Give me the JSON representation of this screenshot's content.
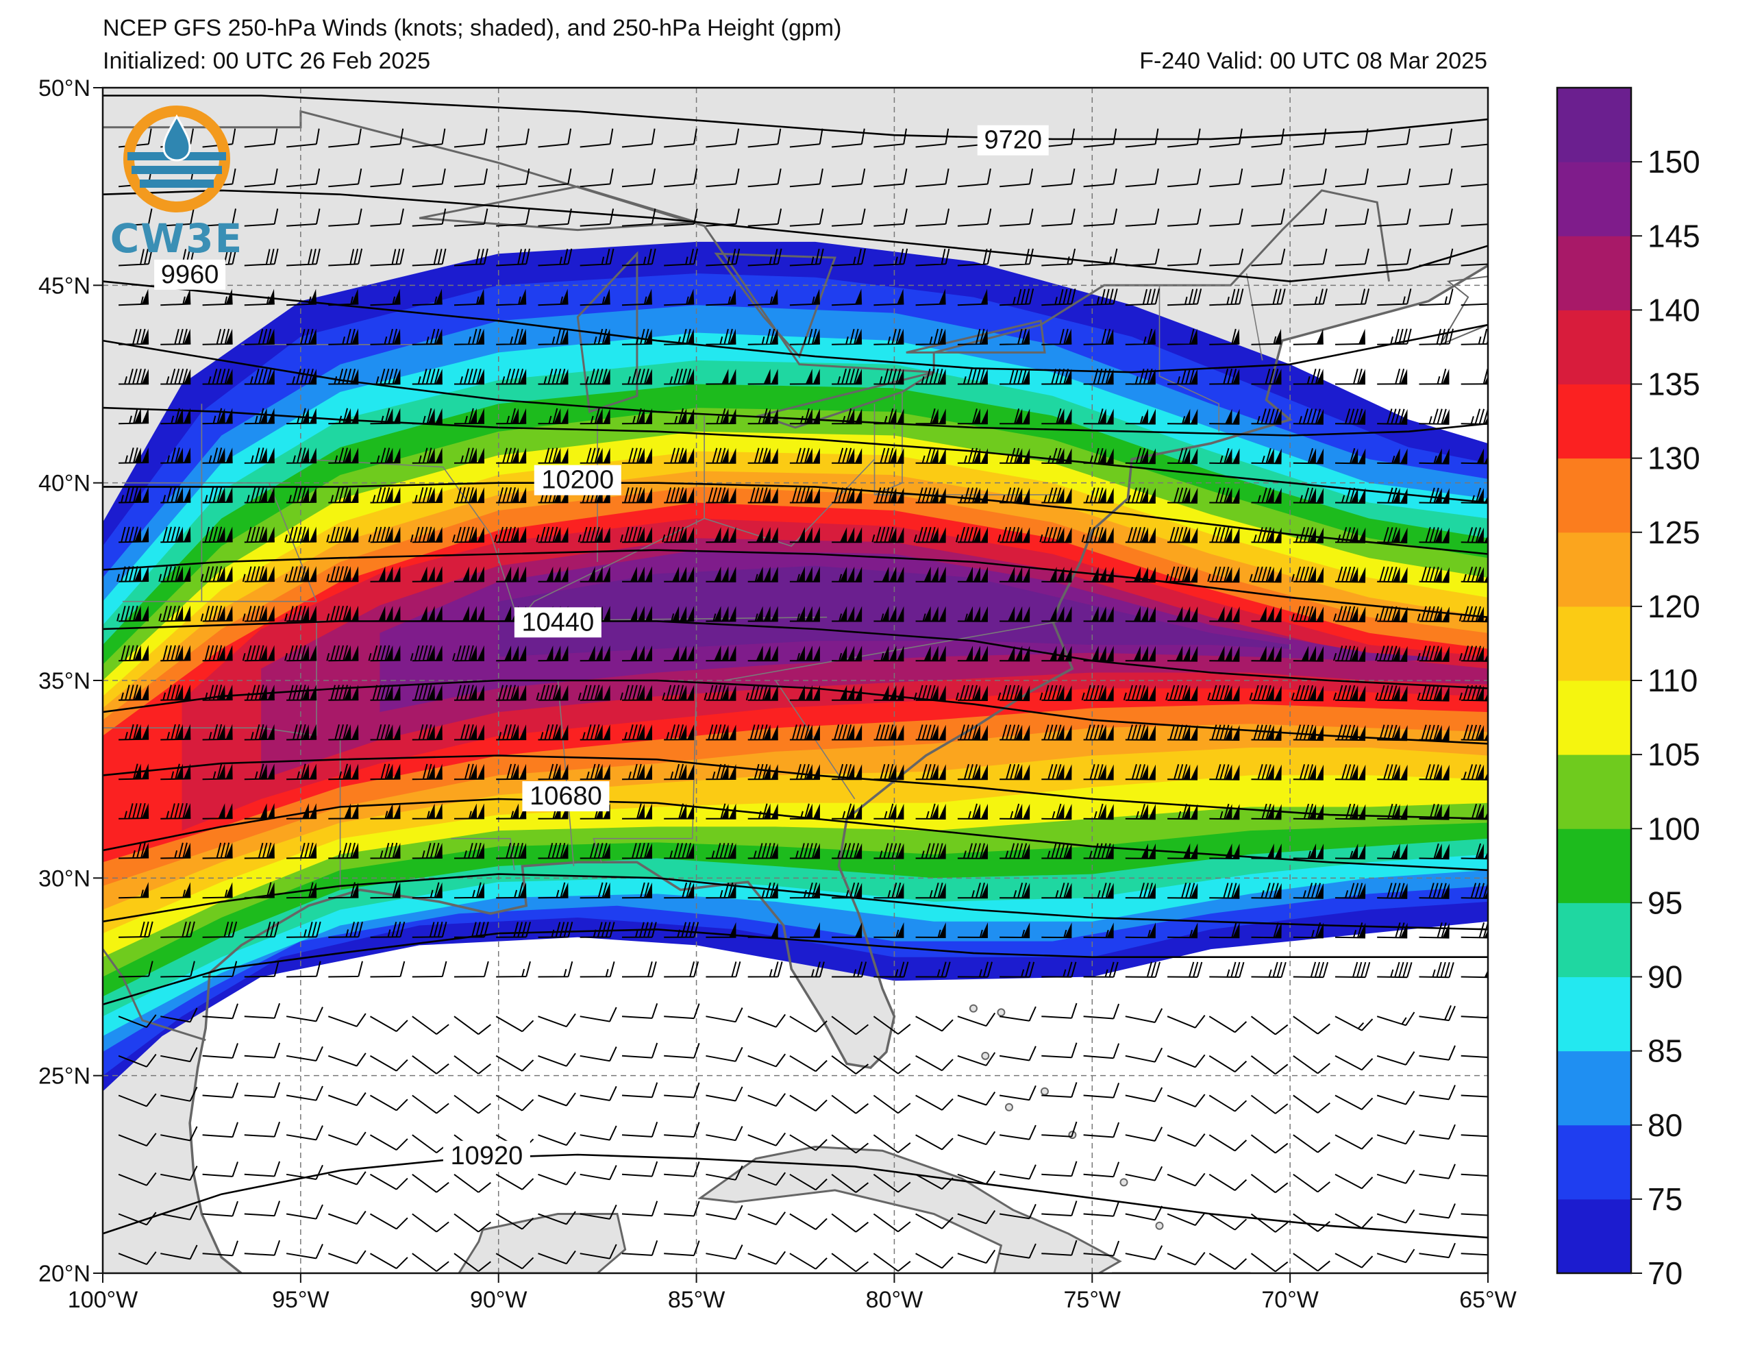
{
  "header": {
    "title": "NCEP GFS 250-hPa Winds (knots; shaded), and 250-hPa Height (gpm)",
    "initialized": "Initialized: 00 UTC 26 Feb 2025",
    "valid": "F-240  Valid: 00 UTC 08 Mar 2025"
  },
  "logo": {
    "text": "CW3E",
    "colors": {
      "ring": "#f39a1e",
      "waves": "#2f86b1",
      "drop": "#2f86b1"
    }
  },
  "map": {
    "lon_range": [
      -100,
      -65
    ],
    "lat_range": [
      20,
      50
    ],
    "lon_ticks": [
      {
        "value": -100,
        "label": "100°W"
      },
      {
        "value": -95,
        "label": "95°W"
      },
      {
        "value": -90,
        "label": "90°W"
      },
      {
        "value": -85,
        "label": "85°W"
      },
      {
        "value": -80,
        "label": "80°W"
      },
      {
        "value": -75,
        "label": "75°W"
      },
      {
        "value": -70,
        "label": "70°W"
      },
      {
        "value": -65,
        "label": "65°W"
      }
    ],
    "lat_ticks": [
      {
        "value": 20,
        "label": "20°N"
      },
      {
        "value": 25,
        "label": "25°N"
      },
      {
        "value": 30,
        "label": "30°N"
      },
      {
        "value": 35,
        "label": "35°N"
      },
      {
        "value": 40,
        "label": "40°N"
      },
      {
        "value": 45,
        "label": "45°N"
      },
      {
        "value": 50,
        "label": "50°N"
      }
    ],
    "gridlines": true,
    "land_color": "#e3e3e3",
    "ocean_color": "#ffffff",
    "height_contours": [
      {
        "label": "9720",
        "label_lon": -77,
        "label_lat": 48.6
      },
      {
        "label": "9960",
        "label_lon": -97.8,
        "label_lat": 45.2
      },
      {
        "label": "10200",
        "label_lon": -88,
        "label_lat": 40.0
      },
      {
        "label": "10440",
        "label_lon": -88.5,
        "label_lat": 36.4
      },
      {
        "label": "10680",
        "label_lon": -88.3,
        "label_lat": 32.0
      },
      {
        "label": "10920",
        "label_lon": -90.3,
        "label_lat": 22.9
      }
    ]
  },
  "colorbar": {
    "levels": [
      70,
      75,
      80,
      85,
      90,
      95,
      100,
      105,
      110,
      120,
      125,
      130,
      135,
      140,
      145,
      150
    ],
    "labels": [
      "70",
      "75",
      "80",
      "85",
      "90",
      "95",
      "100",
      "105",
      "110",
      "120",
      "125",
      "130",
      "135",
      "140",
      "145",
      "150"
    ],
    "colors": [
      "#1c1ccf",
      "#1f3ef0",
      "#1f8ff2",
      "#23e8f0",
      "#1fd7a1",
      "#1dbb1d",
      "#6fcb1e",
      "#f5f50f",
      "#fbcb14",
      "#fba51e",
      "#fb7d1e",
      "#fb2121",
      "#d81c3c",
      "#a81968",
      "#7f1c8b",
      "#6b1f8f"
    ]
  }
}
